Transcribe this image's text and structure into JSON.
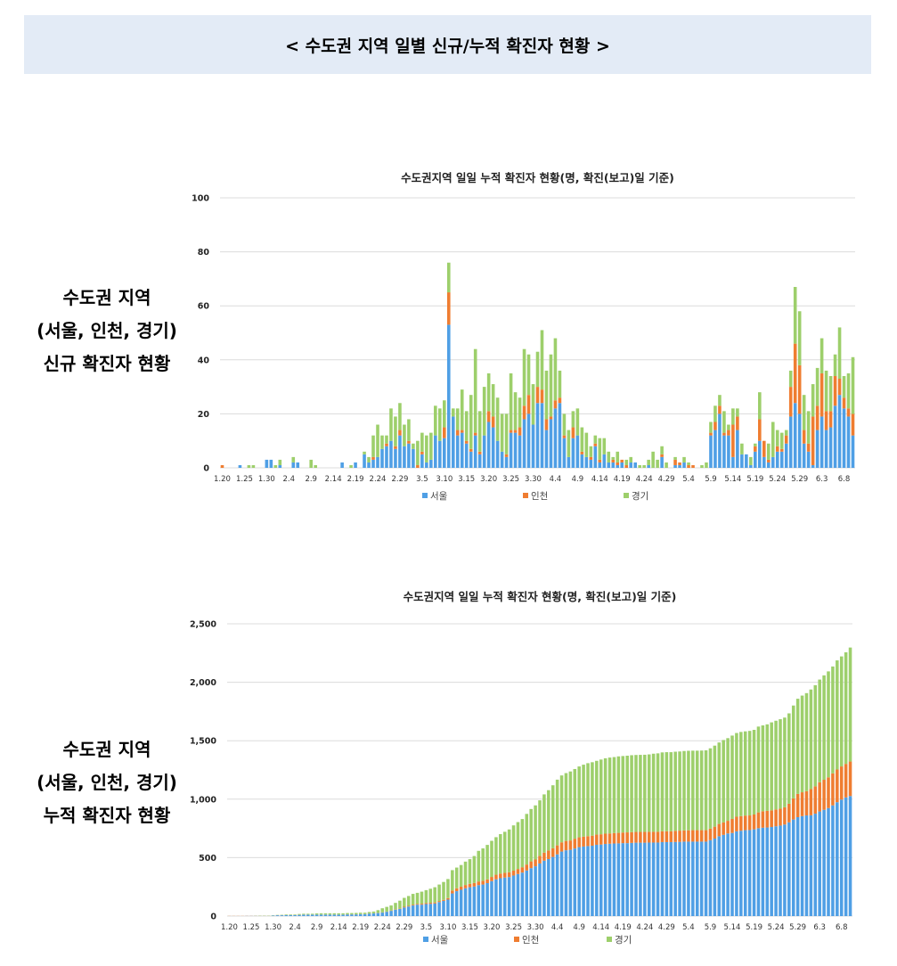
{
  "header": {
    "title": "< 수도권 지역 일별 신규/누적 확진자 현황 >"
  },
  "side_labels": {
    "daily": [
      "수도권 지역",
      "(서울, 인천, 경기)",
      "신규 확진자 현황"
    ],
    "cumulative": [
      "수도권 지역",
      "(서울, 인천, 경기)",
      "누적 확진자 현황"
    ]
  },
  "colors": {
    "서울": "#4f9fe5",
    "인천": "#ef7d31",
    "경기": "#9dcf6b",
    "grid": "#dcdcdc",
    "header_bg": "#e3ebf6"
  },
  "chart_data": [
    {
      "type": "bar",
      "stacked": true,
      "title": "수도권지역 일일 누적 확진자 현황(명, 확진(보고)일 기준)",
      "start_date": "1.20",
      "end_date": "6.10",
      "x_tick_labels": [
        "1.20",
        "1.25",
        "1.30",
        "2.4",
        "2.9",
        "2.14",
        "2.19",
        "2.24",
        "2.29",
        "3.5",
        "3.10",
        "3.15",
        "3.20",
        "3.25",
        "3.30",
        "4.4",
        "4.9",
        "4.14",
        "4.19",
        "4.24",
        "4.29",
        "5.4",
        "5.9",
        "5.14",
        "5.19",
        "5.24",
        "5.29",
        "6.3",
        "6.8"
      ],
      "y_ticks": [
        0,
        20,
        40,
        60,
        80,
        100
      ],
      "ylim": [
        0,
        100
      ],
      "grid": true,
      "legend": [
        "서울",
        "인천",
        "경기"
      ],
      "legend_position": "bottom",
      "series": [
        {
          "name": "서울",
          "values": [
            0,
            0,
            0,
            0,
            1,
            0,
            0,
            0,
            0,
            0,
            3,
            3,
            0,
            1,
            0,
            0,
            2,
            2,
            0,
            0,
            0,
            0,
            0,
            0,
            0,
            0,
            0,
            2,
            0,
            0,
            2,
            0,
            5,
            2,
            3,
            4,
            7,
            8,
            10,
            7,
            12,
            8,
            9,
            7,
            0,
            5,
            2,
            3,
            12,
            10,
            11,
            53,
            19,
            12,
            13,
            9,
            6,
            12,
            5,
            12,
            17,
            15,
            10,
            6,
            4,
            13,
            13,
            12,
            18,
            20,
            16,
            24,
            24,
            14,
            18,
            22,
            24,
            11,
            4,
            11,
            12,
            5,
            4,
            3,
            8,
            2,
            5,
            2,
            2,
            1,
            2,
            0,
            2,
            2,
            0,
            0,
            1,
            0,
            0,
            4,
            0,
            0,
            1,
            1,
            2,
            0,
            0,
            0,
            0,
            0,
            12,
            14,
            20,
            12,
            12,
            4,
            14,
            5,
            5,
            1,
            6,
            10,
            4,
            2,
            4,
            6,
            6,
            9,
            19,
            24,
            20,
            9,
            6,
            1,
            14,
            19,
            14,
            15,
            23,
            27,
            22,
            19,
            12
          ]
        },
        {
          "name": "인천",
          "values": [
            1,
            0,
            0,
            0,
            0,
            0,
            0,
            0,
            0,
            0,
            0,
            0,
            0,
            0,
            0,
            0,
            0,
            0,
            0,
            0,
            0,
            0,
            0,
            0,
            0,
            0,
            0,
            0,
            0,
            0,
            0,
            0,
            0,
            0,
            1,
            0,
            0,
            1,
            0,
            1,
            2,
            0,
            1,
            0,
            1,
            1,
            0,
            0,
            0,
            0,
            4,
            12,
            0,
            2,
            1,
            1,
            1,
            1,
            1,
            0,
            4,
            4,
            0,
            0,
            1,
            1,
            1,
            3,
            5,
            7,
            0,
            6,
            5,
            4,
            1,
            3,
            2,
            1,
            0,
            4,
            0,
            1,
            0,
            1,
            1,
            1,
            0,
            0,
            1,
            1,
            1,
            1,
            0,
            0,
            0,
            0,
            0,
            0,
            0,
            1,
            0,
            0,
            2,
            1,
            0,
            1,
            1,
            0,
            0,
            0,
            1,
            3,
            3,
            1,
            2,
            12,
            5,
            0,
            0,
            0,
            2,
            8,
            6,
            1,
            0,
            2,
            1,
            3,
            11,
            22,
            18,
            5,
            3,
            18,
            9,
            16,
            7,
            6,
            11,
            6,
            4,
            3,
            8
          ]
        },
        {
          "name": "경기",
          "values": [
            0,
            0,
            0,
            0,
            0,
            0,
            1,
            1,
            0,
            0,
            0,
            0,
            1,
            2,
            0,
            0,
            2,
            0,
            0,
            0,
            3,
            1,
            0,
            0,
            0,
            0,
            0,
            0,
            0,
            1,
            0,
            0,
            1,
            2,
            8,
            12,
            5,
            3,
            12,
            11,
            10,
            8,
            8,
            2,
            9,
            7,
            10,
            10,
            11,
            12,
            10,
            11,
            3,
            8,
            15,
            11,
            20,
            31,
            15,
            18,
            14,
            12,
            16,
            14,
            15,
            21,
            14,
            11,
            21,
            15,
            15,
            13,
            22,
            18,
            23,
            23,
            10,
            8,
            10,
            6,
            10,
            9,
            9,
            4,
            3,
            8,
            6,
            4,
            1,
            4,
            0,
            2,
            2,
            0,
            1,
            1,
            2,
            6,
            3,
            3,
            2,
            0,
            1,
            0,
            2,
            1,
            0,
            0,
            1,
            2,
            4,
            6,
            4,
            8,
            2,
            6,
            3,
            4,
            0,
            3,
            1,
            10,
            0,
            6,
            13,
            6,
            6,
            2,
            6,
            21,
            20,
            13,
            12,
            12,
            14,
            13,
            15,
            13,
            8,
            19,
            8,
            13,
            21
          ]
        }
      ]
    },
    {
      "type": "bar",
      "stacked": true,
      "cumulative_of_series": "chart_data.0.series",
      "title": "수도권지역 일일 누적 확진자 현황(명, 확진(보고)일 기준)",
      "x_tick_labels": [
        "1.20",
        "1.25",
        "1.30",
        "2.4",
        "2.9",
        "2.14",
        "2.19",
        "2.24",
        "2.29",
        "3.5",
        "3.10",
        "3.15",
        "3.20",
        "3.25",
        "3.30",
        "4.4",
        "4.9",
        "4.14",
        "4.19",
        "4.24",
        "4.29",
        "5.4",
        "5.9",
        "5.14",
        "5.19",
        "5.24",
        "5.29",
        "6.3",
        "6.8"
      ],
      "y_ticks": [
        "0",
        "500",
        "1,000",
        "1,500",
        "2,000",
        "2,500"
      ],
      "y_tick_values": [
        0,
        500,
        1000,
        1500,
        2000,
        2500
      ],
      "ylim": [
        0,
        2500
      ],
      "grid": true,
      "legend": [
        "서울",
        "인천",
        "경기"
      ],
      "legend_position": "bottom"
    }
  ]
}
